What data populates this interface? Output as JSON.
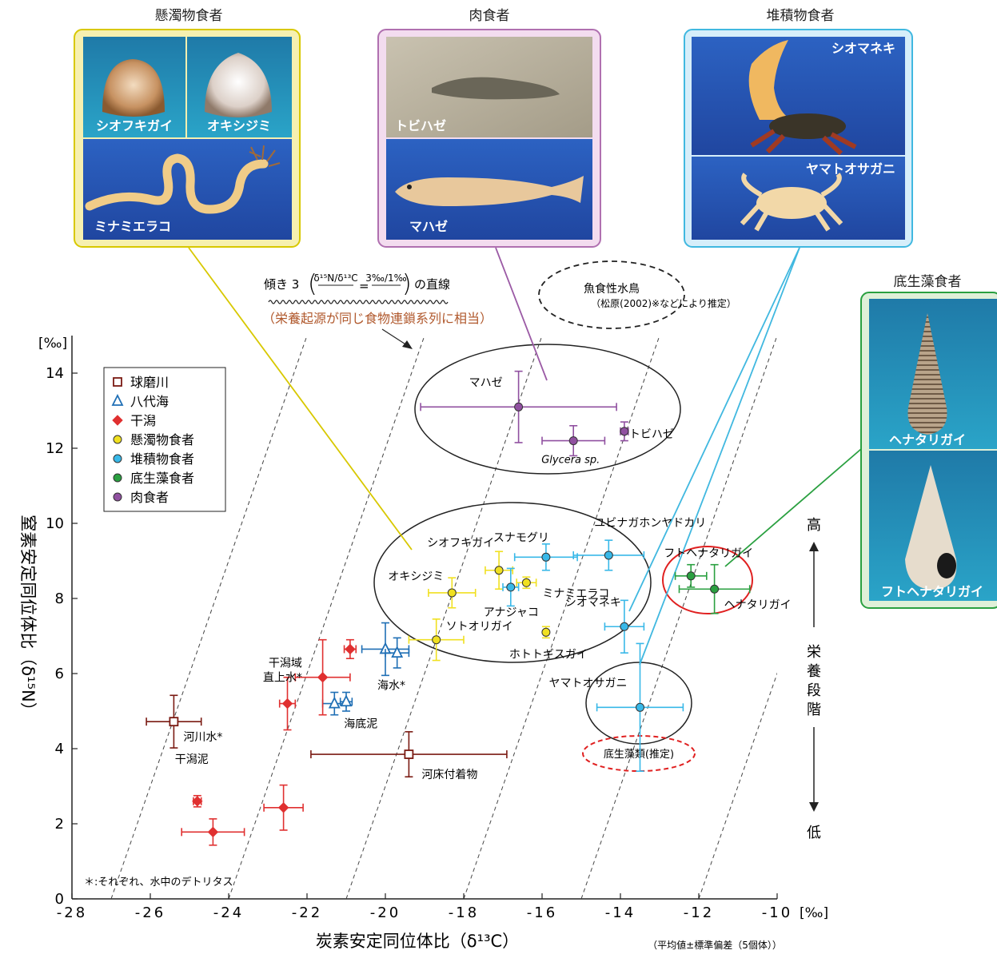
{
  "chart_data": {
    "type": "scatter",
    "xlabel": "炭素安定同位体比（δ¹³C）",
    "ylabel": "窒素安定同位体比（δ¹⁵N）",
    "x_unit": "[‰]",
    "y_unit": "[‰]",
    "xlim": [
      -28,
      -10
    ],
    "ylim": [
      0,
      15
    ],
    "x_ticks": [
      "-28",
      "-26",
      "-24",
      "-22",
      "-20",
      "-18",
      "-16",
      "-14",
      "-12",
      "-10"
    ],
    "y_ticks": [
      "0",
      "2",
      "4",
      "6",
      "8",
      "10",
      "12",
      "14"
    ],
    "legend": [
      {
        "label": "球磨川",
        "marker": "square",
        "color": "#7a1a12"
      },
      {
        "label": "八代海",
        "marker": "triangle",
        "color": "#1f6fb5"
      },
      {
        "label": "干潟",
        "marker": "diamond",
        "color": "#e03030"
      },
      {
        "label": "懸濁物食者",
        "marker": "circle",
        "color": "#f0e020"
      },
      {
        "label": "堆積物食者",
        "marker": "circle",
        "color": "#38b8e8"
      },
      {
        "label": "底生藻食者",
        "marker": "circle",
        "color": "#2aa040"
      },
      {
        "label": "肉食者",
        "marker": "circle",
        "color": "#9050a0"
      }
    ],
    "series": [
      {
        "group": "球磨川",
        "marker": "square",
        "color": "#7a1a12",
        "points": [
          {
            "x": -25.4,
            "y": 4.72,
            "xerr": 0.7,
            "yerr": 0.7,
            "label": "河川水*"
          },
          {
            "x": -19.4,
            "y": 3.85,
            "xerr": 2.5,
            "yerr": 0.6,
            "label": "河床付着物"
          }
        ]
      },
      {
        "group": "八代海",
        "marker": "triangle",
        "color": "#1f6fb5",
        "points": [
          {
            "x": -20.0,
            "y": 6.65,
            "xerr": 0.6,
            "yerr": 0.7,
            "label": "海水*"
          },
          {
            "x": -19.7,
            "y": 6.55,
            "xerr": 0.3,
            "yerr": 0.4,
            "label": ""
          },
          {
            "x": -21.3,
            "y": 5.2,
            "xerr": 0.3,
            "yerr": 0.3,
            "label": "海底泥"
          },
          {
            "x": -21.0,
            "y": 5.25,
            "xerr": 0.15,
            "yerr": 0.25,
            "label": ""
          }
        ]
      },
      {
        "group": "干潟",
        "marker": "diamond",
        "color": "#e03030",
        "points": [
          {
            "x": -20.9,
            "y": 6.65,
            "xerr": 0.15,
            "yerr": 0.25,
            "label": "干潟域\n直上水*"
          },
          {
            "x": -21.6,
            "y": 5.9,
            "xerr": 0.7,
            "yerr": 1.0,
            "label": ""
          },
          {
            "x": -22.5,
            "y": 5.2,
            "xerr": 0.2,
            "yerr": 0.7,
            "label": ""
          },
          {
            "x": -24.8,
            "y": 2.6,
            "xerr": 0.1,
            "yerr": 0.15,
            "label": "干潟泥"
          },
          {
            "x": -24.4,
            "y": 1.78,
            "xerr": 0.8,
            "yerr": 0.35,
            "label": ""
          },
          {
            "x": -22.6,
            "y": 2.43,
            "xerr": 0.5,
            "yerr": 0.6,
            "label": ""
          }
        ]
      },
      {
        "group": "懸濁物食者",
        "marker": "circle",
        "color": "#f0e020",
        "points": [
          {
            "x": -17.1,
            "y": 8.75,
            "xerr": 0.35,
            "yerr": 0.5,
            "label": "シオフキガイ"
          },
          {
            "x": -18.3,
            "y": 8.15,
            "xerr": 0.6,
            "yerr": 0.4,
            "label": "オキシジミ"
          },
          {
            "x": -16.4,
            "y": 8.42,
            "xerr": 0.25,
            "yerr": 0.15,
            "label": "ミナミエラコ"
          },
          {
            "x": -18.7,
            "y": 6.9,
            "xerr": 0.7,
            "yerr": 0.55,
            "label": "ソトオリガイ"
          },
          {
            "x": -15.9,
            "y": 7.1,
            "xerr": 0.0,
            "yerr": 0.15,
            "label": "ホトトギスガイ"
          }
        ]
      },
      {
        "group": "堆積物食者",
        "marker": "circle",
        "color": "#38b8e8",
        "points": [
          {
            "x": -15.9,
            "y": 9.1,
            "xerr": 0.8,
            "yerr": 0.35,
            "label": "スナモグリ"
          },
          {
            "x": -14.3,
            "y": 9.15,
            "xerr": 0.9,
            "yerr": 0.4,
            "label": "ユビナガホンヤドカリ"
          },
          {
            "x": -16.8,
            "y": 8.3,
            "xerr": 0.2,
            "yerr": 0.5,
            "label": "アナジャコ"
          },
          {
            "x": -13.9,
            "y": 7.25,
            "xerr": 0.5,
            "yerr": 0.7,
            "label": "シオマネキ"
          },
          {
            "x": -13.5,
            "y": 5.1,
            "xerr": 1.1,
            "yerr": 1.7,
            "label": "ヤマトオサガニ"
          }
        ]
      },
      {
        "group": "底生藻食者",
        "marker": "circle",
        "color": "#2aa040",
        "points": [
          {
            "x": -12.2,
            "y": 8.6,
            "xerr": 0.4,
            "yerr": 0.3,
            "label": "フトヘナタリガイ"
          },
          {
            "x": -11.6,
            "y": 8.25,
            "xerr": 0.9,
            "yerr": 0.65,
            "label": "ヘナタリガイ"
          }
        ]
      },
      {
        "group": "肉食者",
        "marker": "circle",
        "color": "#9050a0",
        "points": [
          {
            "x": -16.6,
            "y": 13.1,
            "xerr": 2.5,
            "yerr": 0.95,
            "label": "マハゼ"
          },
          {
            "x": -15.2,
            "y": 12.2,
            "xerr": 0.8,
            "yerr": 0.4,
            "label": "Glycera sp."
          },
          {
            "x": -13.9,
            "y": 12.45,
            "xerr": 0.1,
            "yerr": 0.25,
            "label": "トビハゼ"
          }
        ]
      }
    ],
    "guide_lines_slope": 3,
    "annotations": {
      "slope_text_prefix": "傾き 3",
      "slope_formula_lhs": "δ¹⁵N/δ¹³C",
      "slope_formula_rhs": "3‰/1‰",
      "slope_text_suffix": "の直線",
      "food_chain_note": "（栄養起源が同じ食物連鎖系列に相当）",
      "bird_title": "魚食性水鳥",
      "bird_note": "（松原(2002)※などにより推定）",
      "algae_label": "底生藻類(推定)",
      "detritus_note": "＊:それぞれ、水中のデトリタス",
      "stats_note": "（平均値±標準偏差（5個体））",
      "trophic_high": "高",
      "trophic_low": "低",
      "trophic_label": [
        "栄",
        "養",
        "段",
        "階"
      ]
    }
  },
  "panels": {
    "suspension": {
      "title": "懸濁物食者",
      "photos": [
        "シオフキガイ",
        "オキシジミ",
        "ミナミエラコ"
      ]
    },
    "carnivore": {
      "title": "肉食者",
      "photos": [
        "トビハゼ",
        "マハゼ"
      ]
    },
    "deposit": {
      "title": "堆積物食者",
      "photos": [
        "シオマネキ",
        "ヤマトオサガニ"
      ]
    },
    "algae": {
      "title": "底生藻食者",
      "photos": [
        "ヘナタリガイ",
        "フトヘナタリガイ"
      ]
    }
  },
  "colors": {
    "suspension_frame": "#e8d800",
    "carnivore_frame": "#b070b0",
    "deposit_frame": "#40b8e0",
    "algae_frame": "#2aa040",
    "photo_blue": "#2a58b8"
  }
}
